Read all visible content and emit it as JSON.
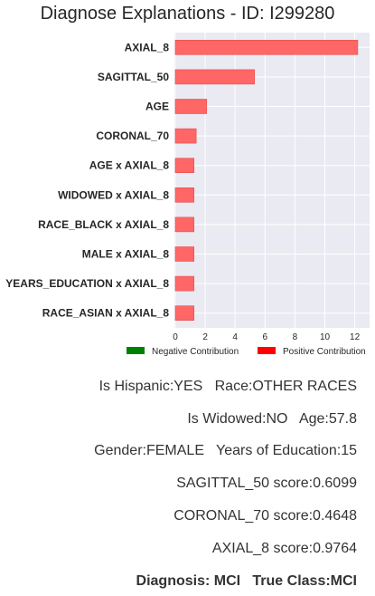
{
  "title": "Diagnose Explanations - ID: I299280",
  "chart_data": {
    "type": "bar",
    "orientation": "horizontal",
    "categories": [
      "AXIAL_8",
      "SAGITTAL_50",
      "AGE",
      "CORONAL_70",
      "AGE x AXIAL_8",
      "WIDOWED x AXIAL_8",
      "RACE_BLACK x AXIAL_8",
      "MALE x AXIAL_8",
      "YEARS_EDUCATION x AXIAL_8",
      "RACE_ASIAN x AXIAL_8"
    ],
    "values": [
      12.2,
      5.3,
      2.1,
      1.4,
      1.25,
      1.25,
      1.25,
      1.25,
      1.25,
      1.25
    ],
    "xlim": [
      0,
      12.9
    ],
    "xticks": [
      "0",
      "2",
      "4",
      "6",
      "8",
      "10",
      "12"
    ],
    "grid": true,
    "legend_position": "bottom",
    "legend": [
      {
        "label": "Negative Contribution",
        "color": "#008000"
      },
      {
        "label": "Positive Contribution",
        "color": "#ff0000"
      }
    ],
    "bar_color": "#ff6666",
    "background_color": "#eaeaf2"
  },
  "info": {
    "line1": "Is Hispanic:YES   Race:OTHER RACES",
    "line2": "Is Widowed:NO   Age:57.8",
    "line3": "Gender:FEMALE   Years of Education:15",
    "line4": "SAGITTAL_50 score:0.6099",
    "line5": "CORONAL_70 score:0.4648",
    "line6": "AXIAL_8 score:0.9764",
    "line7": "Diagnosis: MCI   True Class:MCI"
  }
}
